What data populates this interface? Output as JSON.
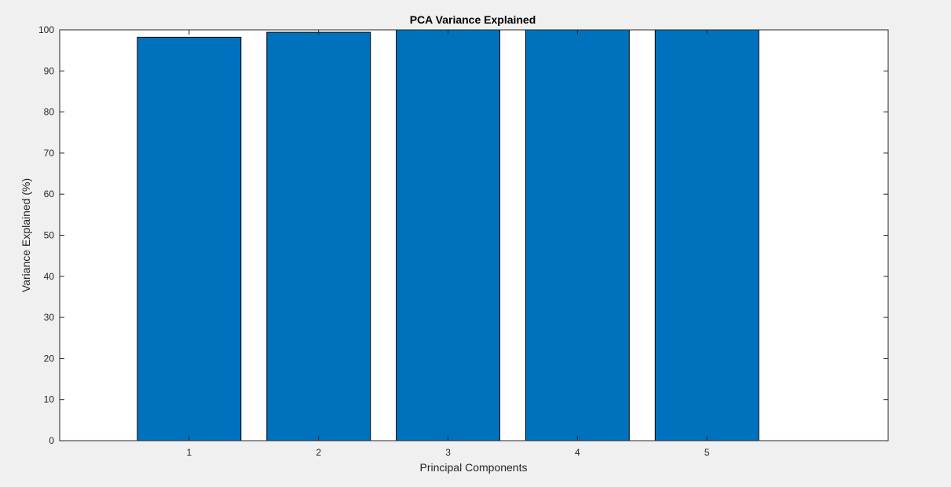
{
  "chart_data": {
    "type": "bar",
    "title": "PCA Variance Explained",
    "xlabel": "Principal Components",
    "ylabel": "Variance Explained (%)",
    "categories": [
      "1",
      "2",
      "3",
      "4",
      "5"
    ],
    "values": [
      98.2,
      99.4,
      100,
      100,
      100
    ],
    "xlim": [
      0,
      6.4
    ],
    "ylim": [
      0,
      100
    ],
    "yticks": [
      0,
      10,
      20,
      30,
      40,
      50,
      60,
      70,
      80,
      90,
      100
    ],
    "grid": false,
    "legend": "none",
    "colors": {
      "bar_fill": "#0072bd",
      "bar_edge": "#000000",
      "axes_background": "#ffffff",
      "figure_background": "#f0f0f0",
      "axis_line": "#262626",
      "text": "#262626"
    }
  }
}
